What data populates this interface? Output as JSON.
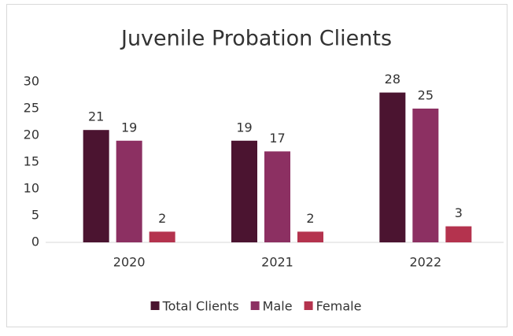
{
  "chart_data": {
    "type": "bar",
    "title": "Juvenile Probation Clients",
    "categories": [
      "2020",
      "2021",
      "2022"
    ],
    "series": [
      {
        "name": "Total Clients",
        "color": "#4b1430",
        "values": [
          21,
          19,
          28
        ]
      },
      {
        "name": "Male",
        "color": "#8c3062",
        "values": [
          19,
          17,
          25
        ]
      },
      {
        "name": "Female",
        "color": "#b4334e",
        "values": [
          2,
          2,
          3
        ]
      }
    ],
    "ylim": [
      0,
      30
    ],
    "yticks": [
      0,
      5,
      10,
      15,
      20,
      25,
      30
    ],
    "grid": false,
    "data_labels": true,
    "legend": "bottom"
  }
}
